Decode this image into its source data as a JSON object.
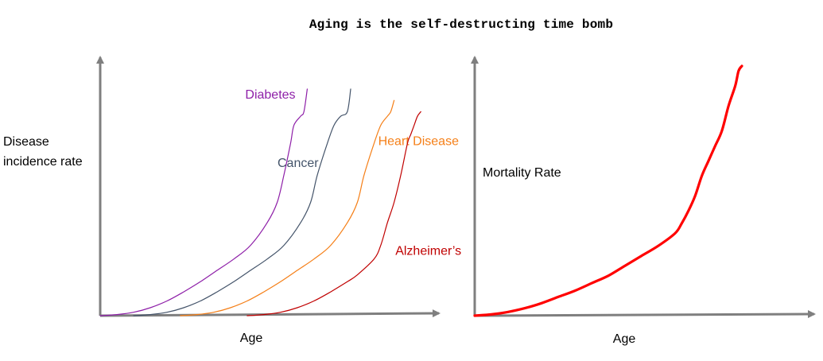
{
  "title": "Aging is the self-destructing time bomb",
  "chart_data": [
    {
      "type": "line",
      "title": "",
      "xlabel": "Age",
      "ylabel": "Disease incidence rate",
      "ylabel_lines": [
        "Disease",
        "incidence rate"
      ],
      "xlim": [
        0,
        100
      ],
      "ylim": [
        0,
        100
      ],
      "grid": false,
      "legend": "inline-labels",
      "series": [
        {
          "name": "Diabetes",
          "color": "#8e1fa8",
          "x": [
            0,
            5,
            10,
            15,
            20,
            25,
            30,
            35,
            40,
            45,
            50,
            53,
            55,
            57,
            58,
            60,
            61,
            62
          ],
          "y": [
            0,
            0.5,
            1.5,
            3.5,
            6.5,
            10.5,
            15,
            20,
            25,
            31,
            41,
            50,
            62,
            76,
            84,
            88,
            90,
            100
          ]
        },
        {
          "name": "Cancer",
          "color": "#44546a",
          "x": [
            10,
            15,
            20,
            25,
            30,
            35,
            40,
            45,
            50,
            55,
            60,
            63,
            65,
            68,
            70,
            72,
            74,
            75
          ],
          "y": [
            0,
            0.5,
            1.5,
            3.5,
            6.5,
            10.5,
            15,
            20,
            25,
            31,
            41,
            50,
            62,
            76,
            84,
            88,
            90,
            100
          ]
        },
        {
          "name": "Heart Disease",
          "color": "#f57f17",
          "x": [
            24,
            29,
            34,
            39,
            44,
            49,
            54,
            59,
            64,
            69,
            74,
            77,
            79,
            82,
            84,
            86,
            87,
            88
          ],
          "y": [
            0,
            0.5,
            1.5,
            3.5,
            6.5,
            10.5,
            15,
            20,
            25,
            31,
            41,
            50,
            62,
            76,
            84,
            88,
            90,
            95
          ]
        },
        {
          "name": "Alzheimer’s",
          "color": "#c00000",
          "x": [
            44,
            49,
            54,
            59,
            64,
            69,
            74,
            77,
            82,
            84,
            86,
            88,
            90,
            92,
            93,
            94,
            95,
            96
          ],
          "y": [
            0,
            0.5,
            1.5,
            3.5,
            6.5,
            10.5,
            15,
            18,
            25,
            31,
            41,
            50,
            62,
            76,
            80,
            84,
            88,
            90
          ]
        }
      ]
    },
    {
      "type": "line",
      "title": "",
      "xlabel": "Age",
      "ylabel": "Mortality Rate",
      "xlim": [
        0,
        100
      ],
      "ylim": [
        0,
        100
      ],
      "grid": false,
      "legend": "none",
      "series": [
        {
          "name": "",
          "color": "#ff0000",
          "x": [
            0,
            5,
            10,
            15,
            20,
            25,
            30,
            35,
            40,
            45,
            50,
            55,
            60,
            62,
            64,
            66,
            68,
            70,
            72,
            74,
            76,
            78,
            79,
            80
          ],
          "y": [
            0,
            0.5,
            1.5,
            3,
            5,
            7.5,
            10,
            13,
            16,
            20,
            24,
            28,
            33,
            37,
            42,
            48,
            56,
            62,
            68,
            74,
            84,
            92,
            98,
            100
          ]
        }
      ]
    }
  ]
}
